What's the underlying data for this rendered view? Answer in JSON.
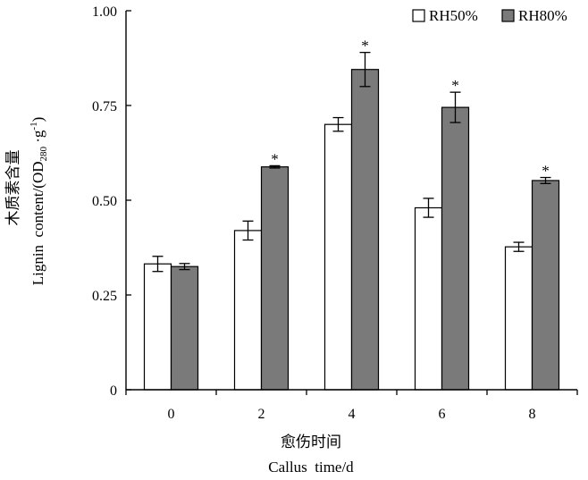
{
  "chart_data": {
    "type": "bar",
    "categories": [
      "0",
      "2",
      "4",
      "6",
      "8"
    ],
    "series": [
      {
        "name": "RH50%",
        "color": "#ffffff",
        "values": [
          0.332,
          0.42,
          0.7,
          0.48,
          0.377
        ],
        "errors": [
          0.02,
          0.025,
          0.018,
          0.025,
          0.012
        ],
        "significance": [
          "",
          "",
          "",
          "",
          ""
        ]
      },
      {
        "name": "RH80%",
        "color": "#7a7a7a",
        "values": [
          0.325,
          0.588,
          0.845,
          0.745,
          0.552
        ],
        "errors": [
          0.008,
          0.003,
          0.045,
          0.04,
          0.008
        ],
        "significance": [
          "",
          "*",
          "*",
          "*",
          "*"
        ]
      }
    ],
    "yticks": [
      "0",
      "0.25",
      "0.50",
      "0.75",
      "1.00"
    ],
    "ylim": [
      0,
      1.0
    ],
    "xlabel_cn": "愈伤时间",
    "xlabel_en": "Callus  time/d",
    "ylabel_cn": "木质素含量",
    "ylabel_en_main": "Lignin  content/(OD",
    "ylabel_en_sub": "280",
    "ylabel_en_mid": " ·g",
    "ylabel_en_sup": "-1",
    "ylabel_en_end": ")",
    "legend_position": "top-right",
    "grid": false
  }
}
